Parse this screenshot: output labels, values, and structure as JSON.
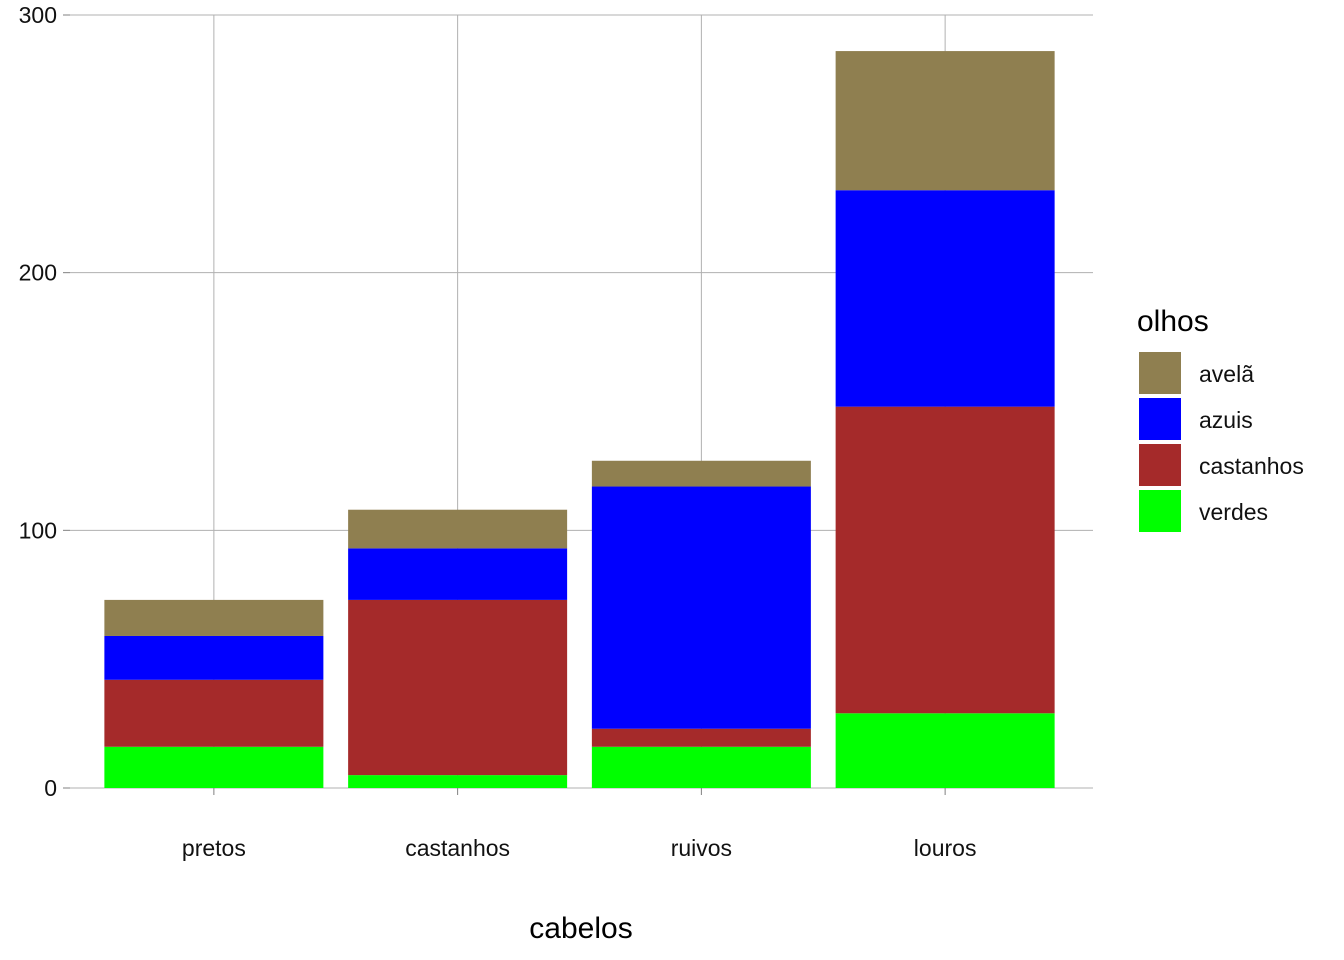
{
  "chart_data": {
    "type": "bar",
    "stacked": true,
    "title": "",
    "xlabel": "cabelos",
    "ylabel": "",
    "categories": [
      "pretos",
      "castanhos",
      "ruivos",
      "louros"
    ],
    "ylim": [
      0,
      300
    ],
    "yticks": [
      0,
      100,
      200,
      300
    ],
    "grid": true,
    "legend": {
      "title": "olhos",
      "placement": "right"
    },
    "series": [
      {
        "name": "verdes",
        "color": "#00ff00",
        "values": [
          16,
          5,
          16,
          29
        ]
      },
      {
        "name": "castanhos",
        "color": "#a52a2a",
        "values": [
          26,
          68,
          7,
          119
        ]
      },
      {
        "name": "azuis",
        "color": "#0000ff",
        "values": [
          17,
          20,
          94,
          84
        ]
      },
      {
        "name": "avelã",
        "color": "#8f7f50",
        "values": [
          14,
          15,
          10,
          54
        ]
      }
    ],
    "legend_order": [
      "avelã",
      "azuis",
      "castanhos",
      "verdes"
    ]
  }
}
